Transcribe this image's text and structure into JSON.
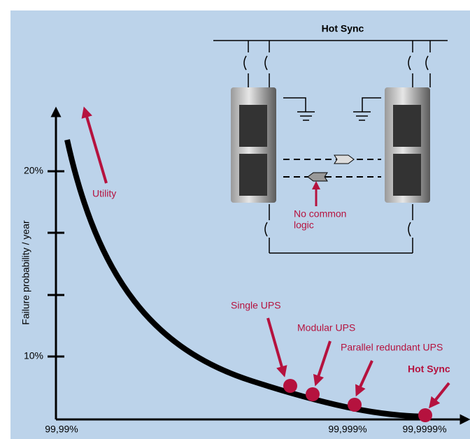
{
  "axes": {
    "y_label": "Failure probability / year",
    "y_ticks": [
      "20%",
      "10%"
    ],
    "x_ticks": [
      "99,99%",
      "99,999%",
      "99,9999%"
    ]
  },
  "annotations": [
    "Utility",
    "Single UPS",
    "Modular UPS",
    "Parallel redundant UPS",
    "Hot Sync"
  ],
  "inset": {
    "title": "Hot Sync",
    "note": [
      "No common",
      "logic"
    ]
  }
}
